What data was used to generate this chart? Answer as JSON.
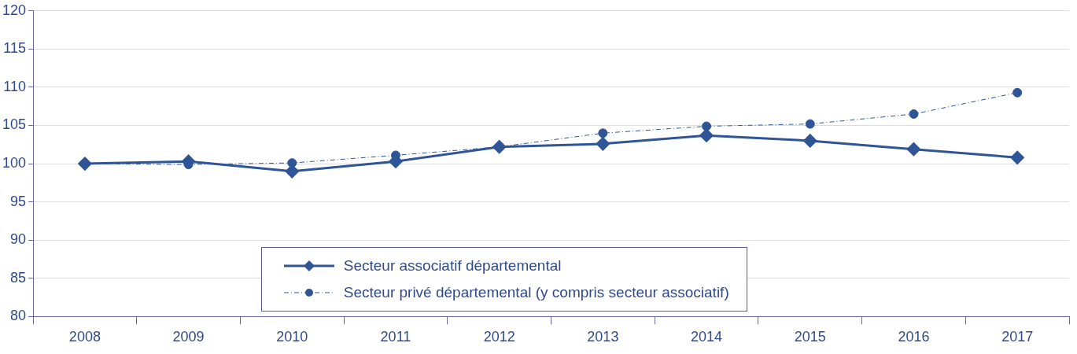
{
  "chart_data": {
    "type": "line",
    "categories": [
      "2008",
      "2009",
      "2010",
      "2011",
      "2012",
      "2013",
      "2014",
      "2015",
      "2016",
      "2017"
    ],
    "series": [
      {
        "name": "Secteur associatif départemental",
        "color": "#2f5597",
        "marker": "diamond",
        "line_style": "solid",
        "values": [
          100,
          100.3,
          99.0,
          100.3,
          102.2,
          102.6,
          103.7,
          103.0,
          101.9,
          100.8
        ]
      },
      {
        "name": "Secteur privé départemental (y compris secteur associatif)",
        "color": "#2f5597",
        "marker": "circle",
        "line_style": "dashed",
        "values": [
          100,
          99.9,
          100.1,
          101.1,
          102.2,
          104.0,
          104.9,
          105.2,
          106.5,
          109.3
        ]
      }
    ],
    "ylim": [
      80,
      120
    ],
    "yticks": [
      80,
      85,
      90,
      95,
      100,
      105,
      110,
      115,
      120
    ],
    "grid": "y",
    "legend": "bottom"
  }
}
